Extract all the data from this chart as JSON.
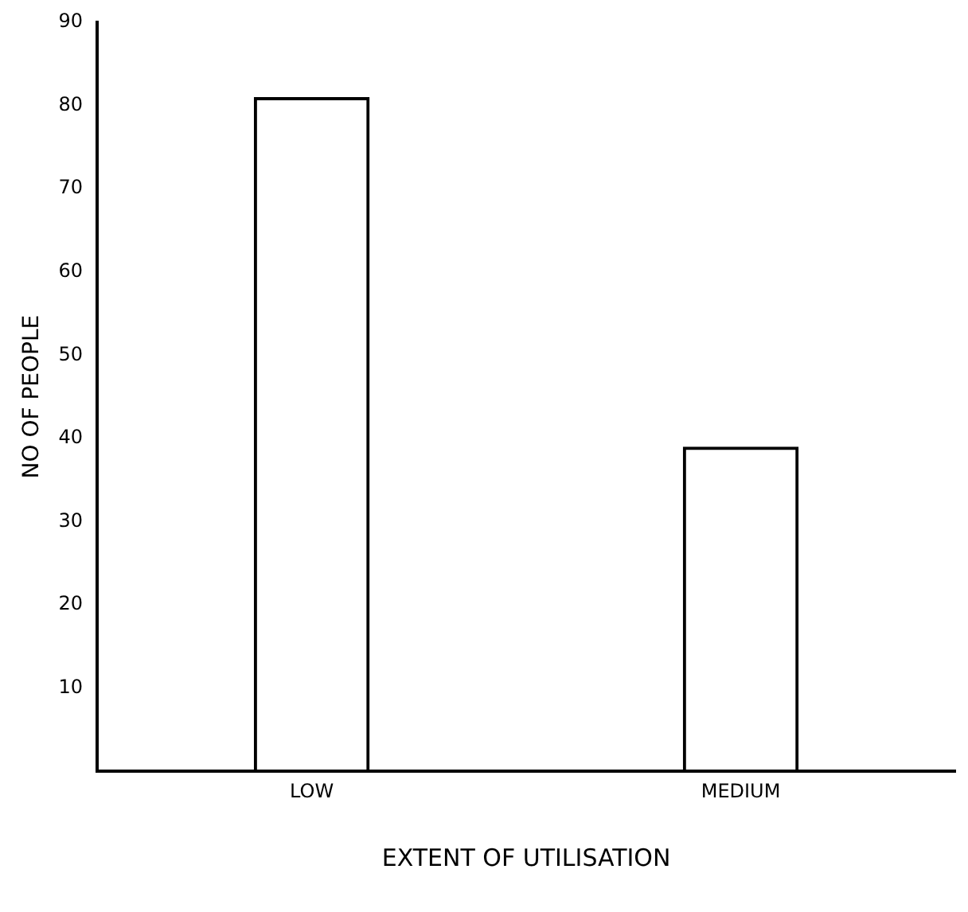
{
  "chart_data": {
    "type": "bar",
    "xlabel": "EXTENT OF UTILISATION",
    "ylabel": "NO OF PEOPLE",
    "categories": [
      "LOW",
      "MEDIUM"
    ],
    "values": [
      81,
      39
    ],
    "color": "#000000",
    "ylim": [
      0,
      90
    ],
    "yticks": [
      10,
      20,
      30,
      40,
      50,
      60,
      70,
      80,
      90
    ],
    "grid": false,
    "legend": false
  }
}
